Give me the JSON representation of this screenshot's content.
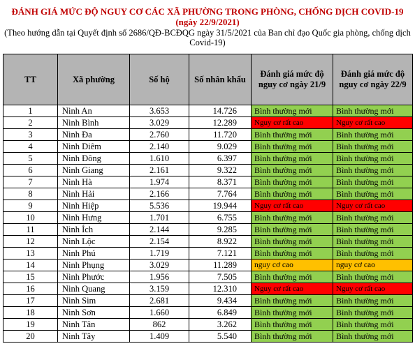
{
  "header": {
    "title": "ĐÁNH GIÁ MỨC ĐỘ NGUY CƠ CÁC XÃ PHƯỜNG TRONG PHÒNG, CHỐNG DỊCH COVID-19",
    "date": "(ngày 22/9/2021)",
    "note": "(Theo hướng dẫn tại Quyết định số 2686/QĐ-BCĐQG ngày 31/5/2021 của Ban chỉ đạo Quốc gia phòng, chống dịch Covid-19)"
  },
  "table": {
    "columns": [
      "TT",
      "Xã phường",
      "Số hộ",
      "Số nhân khẩu",
      "Đánh giá mức độ nguy cơ ngày 21/9",
      "Đánh giá mức độ nguy cơ ngày 22/9"
    ],
    "rows": [
      {
        "tt": "1",
        "name": "Ninh An",
        "households": "3.653",
        "population": "14.726",
        "risk21": "Bình thường mới",
        "risk21_level": "normal",
        "risk22": "Bình thường mới",
        "risk22_level": "normal"
      },
      {
        "tt": "2",
        "name": "Ninh Bình",
        "households": "3.029",
        "population": "12.289",
        "risk21": "Nguy cơ rất cao",
        "risk21_level": "very-high",
        "risk22": "Nguy cơ rất cao",
        "risk22_level": "very-high"
      },
      {
        "tt": "3",
        "name": "Ninh Đa",
        "households": "2.760",
        "population": "11.720",
        "risk21": "Bình thường mới",
        "risk21_level": "normal",
        "risk22": "Bình thường mới",
        "risk22_level": "normal"
      },
      {
        "tt": "4",
        "name": "Ninh Diêm",
        "households": "2.140",
        "population": "9.029",
        "risk21": "Bình thường mới",
        "risk21_level": "normal",
        "risk22": "Bình thường mới",
        "risk22_level": "normal"
      },
      {
        "tt": "5",
        "name": "Ninh Đông",
        "households": "1.610",
        "population": "6.397",
        "risk21": "Bình thường mới",
        "risk21_level": "normal",
        "risk22": "Bình thường mới",
        "risk22_level": "normal"
      },
      {
        "tt": "6",
        "name": "Ninh Giang",
        "households": "2.161",
        "population": "9.322",
        "risk21": "Bình thường mới",
        "risk21_level": "normal",
        "risk22": "Bình thường mới",
        "risk22_level": "normal"
      },
      {
        "tt": "7",
        "name": "Ninh Hà",
        "households": "1.974",
        "population": "8.371",
        "risk21": "Bình thường mới",
        "risk21_level": "normal",
        "risk22": "Bình thường mới",
        "risk22_level": "normal"
      },
      {
        "tt": "8",
        "name": "Ninh Hải",
        "households": "2.166",
        "population": "7.764",
        "risk21": "Bình thường mới",
        "risk21_level": "normal",
        "risk22": "Bình thường mới",
        "risk22_level": "normal"
      },
      {
        "tt": "9",
        "name": "Ninh Hiệp",
        "households": "5.536",
        "population": "19.944",
        "risk21": "Nguy cơ rất cao",
        "risk21_level": "very-high",
        "risk22": "Nguy cơ rất cao",
        "risk22_level": "very-high"
      },
      {
        "tt": "10",
        "name": "Ninh Hưng",
        "households": "1.701",
        "population": "6.755",
        "risk21": "Bình thường mới",
        "risk21_level": "normal",
        "risk22": "Bình thường mới",
        "risk22_level": "normal"
      },
      {
        "tt": "11",
        "name": "Ninh Ích",
        "households": "2.144",
        "population": "9.285",
        "risk21": "Bình thường mới",
        "risk21_level": "normal",
        "risk22": "Bình thường mới",
        "risk22_level": "normal"
      },
      {
        "tt": "12",
        "name": "Ninh Lộc",
        "households": "2.154",
        "population": "8.922",
        "risk21": "Bình thường mới",
        "risk21_level": "normal",
        "risk22": "Bình thường mới",
        "risk22_level": "normal"
      },
      {
        "tt": "13",
        "name": "Ninh Phú",
        "households": "1.719",
        "population": "7.121",
        "risk21": "Bình thường mới",
        "risk21_level": "normal",
        "risk22": "Bình thường mới",
        "risk22_level": "normal"
      },
      {
        "tt": "14",
        "name": "Ninh Phụng",
        "households": "3.029",
        "population": "11.289",
        "risk21": "nguy cơ cao",
        "risk21_level": "high",
        "risk22": "nguy cơ cao",
        "risk22_level": "high"
      },
      {
        "tt": "15",
        "name": "Ninh Phước",
        "households": "1.956",
        "population": "7.505",
        "risk21": "Bình thường mới",
        "risk21_level": "normal",
        "risk22": "Bình thường mới",
        "risk22_level": "normal"
      },
      {
        "tt": "16",
        "name": "Ninh Quang",
        "households": "3.159",
        "population": "12.310",
        "risk21": "Nguy cơ rất cao",
        "risk21_level": "very-high",
        "risk22": "Nguy cơ rất cao",
        "risk22_level": "very-high"
      },
      {
        "tt": "17",
        "name": "Ninh Sim",
        "households": "2.681",
        "population": "9.434",
        "risk21": "Bình thường mới",
        "risk21_level": "normal",
        "risk22": "Bình thường mới",
        "risk22_level": "normal"
      },
      {
        "tt": "18",
        "name": "Ninh Sơn",
        "households": "1.660",
        "population": "6.849",
        "risk21": "Bình thường mới",
        "risk21_level": "normal",
        "risk22": "Bình thường mới",
        "risk22_level": "normal"
      },
      {
        "tt": "19",
        "name": "Ninh Tân",
        "households": "862",
        "population": "3.262",
        "risk21": "Bình thường mới",
        "risk21_level": "normal",
        "risk22": "Bình thường mới",
        "risk22_level": "normal"
      },
      {
        "tt": "20",
        "name": "Ninh Tây",
        "households": "1.409",
        "population": "5.540",
        "risk21": "Bình thường mới",
        "risk21_level": "normal",
        "risk22": "Bình thường mới",
        "risk22_level": "normal"
      }
    ]
  },
  "colors": {
    "title": "#c00000",
    "header_bg": "#b4b4b4",
    "normal": "#92d050",
    "high": "#ffc000",
    "very_high": "#ff0000"
  }
}
